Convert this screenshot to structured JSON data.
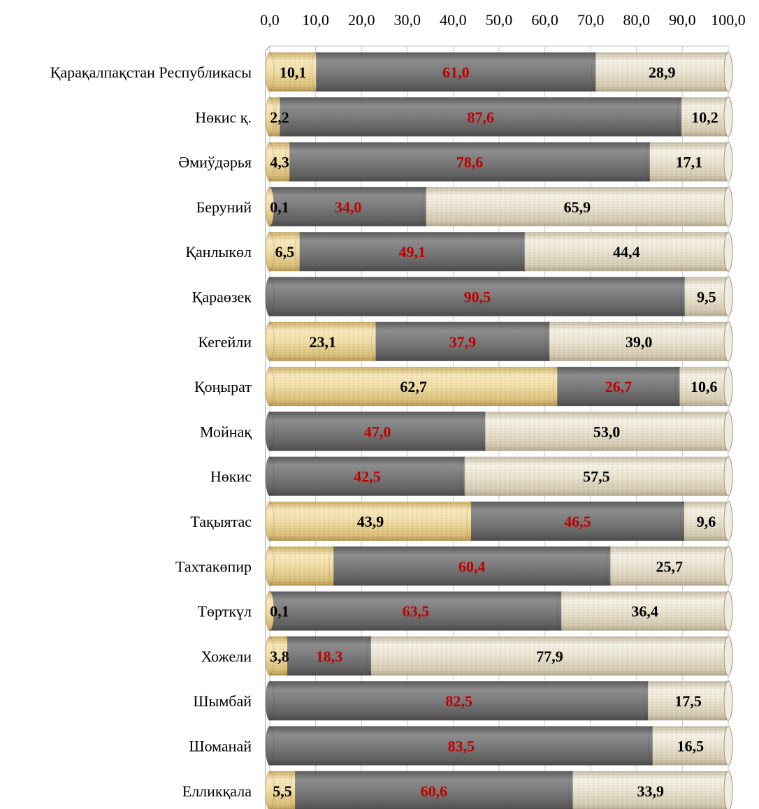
{
  "chart_data": {
    "type": "bar",
    "orientation": "horizontal",
    "stacked": true,
    "title": "",
    "xlim": [
      0,
      100
    ],
    "x_ticks": [
      "0,0",
      "10,0",
      "20,0",
      "30,0",
      "40,0",
      "50,0",
      "60,0",
      "70,0",
      "80,0",
      "90,0",
      "100,0"
    ],
    "x_axis_position": "top",
    "grid": true,
    "categories": [
      "Қарақалпақстан Республикасы",
      "Нөкис қ.",
      "Әмиўдәрья",
      "Беруний",
      "Қанлыкөл",
      "Қараөзек",
      "Кегейли",
      "Қоңырат",
      "Мойнақ",
      "Нөкис",
      "Тақыятас",
      "Тахтакөпир",
      "Төрткүл",
      "Хожели",
      "Шымбай",
      "Шоманай",
      "Елликқала"
    ],
    "series": [
      {
        "color": "#ecd9a0",
        "label_color": "#000000",
        "values": [
          10.1,
          2.2,
          4.3,
          0.1,
          6.5,
          0.0,
          23.1,
          62.7,
          0.0,
          0.0,
          43.9,
          13.9,
          0.1,
          3.8,
          0.0,
          0.0,
          5.5
        ],
        "labels": [
          "10,1",
          "2,2",
          "4,3",
          "0,1",
          "6,5",
          "",
          "23,1",
          "62,7",
          "",
          "",
          "43,9",
          "",
          "0,1",
          "3,8",
          "",
          "",
          "5,5"
        ]
      },
      {
        "color": "#7a7a7a",
        "label_color": "#c00000",
        "values": [
          61.0,
          87.6,
          78.6,
          34.0,
          49.1,
          90.5,
          37.9,
          26.7,
          47.0,
          42.5,
          46.5,
          60.4,
          63.5,
          18.3,
          82.5,
          83.5,
          60.6
        ],
        "labels": [
          "61,0",
          "87,6",
          "78,6",
          "34,0",
          "49,1",
          "90,5",
          "37,9",
          "26,7",
          "47,0",
          "42,5",
          "46,5",
          "60,4",
          "63,5",
          "18,3",
          "82,5",
          "83,5",
          "60,6"
        ]
      },
      {
        "color": "#e9e3d3",
        "label_color": "#000000",
        "values": [
          28.9,
          10.2,
          17.1,
          65.9,
          44.4,
          9.5,
          39.0,
          10.6,
          53.0,
          57.5,
          9.6,
          25.7,
          36.4,
          77.9,
          17.5,
          16.5,
          33.9
        ],
        "labels": [
          "28,9",
          "10,2",
          "17,1",
          "65,9",
          "44,4",
          "9,5",
          "39,0",
          "10,6",
          "53,0",
          "57,5",
          "9,6",
          "25,7",
          "36,4",
          "77,9",
          "17,5",
          "16,5",
          "33,9"
        ]
      }
    ]
  }
}
